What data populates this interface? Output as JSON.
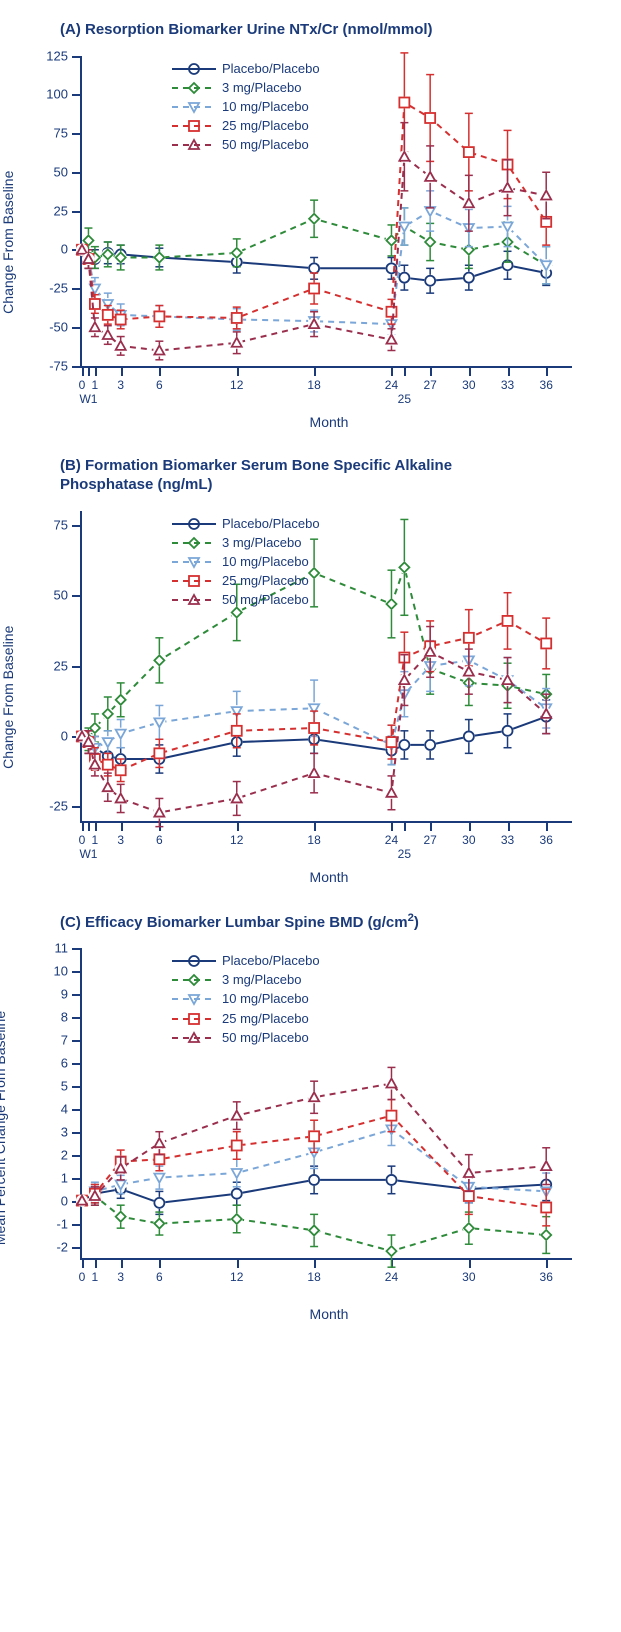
{
  "colors": {
    "placebo": "#1a3a7a",
    "d3": "#2e8b3a",
    "d10": "#7aa6d8",
    "d25": "#d62f2f",
    "d50": "#9a2e4d"
  },
  "markers": {
    "placebo": "circle",
    "d3": "diamond",
    "d10": "tridown",
    "d25": "square",
    "d50": "triup"
  },
  "dash": {
    "placebo": "",
    "d3": "6,5",
    "d10": "6,5",
    "d25": "6,5",
    "d50": "6,5"
  },
  "legend_labels": {
    "placebo": "Placebo/Placebo",
    "d3": "3 mg/Placebo",
    "d10": "10 mg/Placebo",
    "d25": "25 mg/Placebo",
    "d50": "50 mg/Placebo"
  },
  "xaxis": {
    "label": "Month",
    "ticks_AB": [
      {
        "v": 0,
        "l": "0"
      },
      {
        "v": 0.5,
        "l": "W1"
      },
      {
        "v": 1,
        "l": "1"
      },
      {
        "v": 3,
        "l": "3"
      },
      {
        "v": 6,
        "l": "6"
      },
      {
        "v": 12,
        "l": "12"
      },
      {
        "v": 18,
        "l": "18"
      },
      {
        "v": 24,
        "l": "24"
      },
      {
        "v": 25,
        "l": "25"
      },
      {
        "v": 27,
        "l": "27"
      },
      {
        "v": 30,
        "l": "30"
      },
      {
        "v": 33,
        "l": "33"
      },
      {
        "v": 36,
        "l": "36"
      }
    ],
    "ticks_C": [
      {
        "v": 0,
        "l": "0"
      },
      {
        "v": 1,
        "l": "1"
      },
      {
        "v": 3,
        "l": "3"
      },
      {
        "v": 6,
        "l": "6"
      },
      {
        "v": 12,
        "l": "12"
      },
      {
        "v": 18,
        "l": "18"
      },
      {
        "v": 24,
        "l": "24"
      },
      {
        "v": 30,
        "l": "30"
      },
      {
        "v": 36,
        "l": "36"
      }
    ],
    "range": [
      0,
      38
    ]
  },
  "panels": [
    {
      "id": "A",
      "title": "(A) Resorption Biomarker Urine NTx/Cr (nmol/mmol)",
      "ylabel": "Geometric Mean Percent\nChange From Baseline",
      "yrange": [
        -75,
        125
      ],
      "yticks": [
        -75,
        -50,
        -25,
        0,
        25,
        50,
        75,
        100,
        125
      ],
      "xticks": "ticks_AB",
      "series": {
        "placebo": [
          {
            "x": 0,
            "y": 0,
            "e": 0
          },
          {
            "x": 0.5,
            "y": -6,
            "e": 6
          },
          {
            "x": 1,
            "y": -6,
            "e": 6
          },
          {
            "x": 2,
            "y": -2,
            "e": 7
          },
          {
            "x": 3,
            "y": -3,
            "e": 6
          },
          {
            "x": 6,
            "y": -5,
            "e": 6
          },
          {
            "x": 12,
            "y": -8,
            "e": 7
          },
          {
            "x": 18,
            "y": -12,
            "e": 7
          },
          {
            "x": 24,
            "y": -12,
            "e": 7
          },
          {
            "x": 25,
            "y": -18,
            "e": 8
          },
          {
            "x": 27,
            "y": -20,
            "e": 8
          },
          {
            "x": 30,
            "y": -18,
            "e": 8
          },
          {
            "x": 33,
            "y": -10,
            "e": 9
          },
          {
            "x": 36,
            "y": -15,
            "e": 8
          }
        ],
        "d3": [
          {
            "x": 0,
            "y": 0,
            "e": 0
          },
          {
            "x": 0.5,
            "y": 6,
            "e": 8
          },
          {
            "x": 1,
            "y": -5,
            "e": 7
          },
          {
            "x": 2,
            "y": -3,
            "e": 8
          },
          {
            "x": 3,
            "y": -5,
            "e": 8
          },
          {
            "x": 6,
            "y": -5,
            "e": 8
          },
          {
            "x": 12,
            "y": -2,
            "e": 9
          },
          {
            "x": 18,
            "y": 20,
            "e": 12
          },
          {
            "x": 24,
            "y": 6,
            "e": 10
          },
          {
            "x": 25,
            "y": 15,
            "e": 12
          },
          {
            "x": 27,
            "y": 5,
            "e": 12
          },
          {
            "x": 30,
            "y": 0,
            "e": 12
          },
          {
            "x": 33,
            "y": 5,
            "e": 13
          },
          {
            "x": 36,
            "y": -10,
            "e": 12
          }
        ],
        "d10": [
          {
            "x": 0,
            "y": 0,
            "e": 0
          },
          {
            "x": 0.5,
            "y": -6,
            "e": 6
          },
          {
            "x": 1,
            "y": -25,
            "e": 7
          },
          {
            "x": 2,
            "y": -35,
            "e": 7
          },
          {
            "x": 3,
            "y": -42,
            "e": 7
          },
          {
            "x": 6,
            "y": -43,
            "e": 7
          },
          {
            "x": 12,
            "y": -45,
            "e": 7
          },
          {
            "x": 18,
            "y": -46,
            "e": 7
          },
          {
            "x": 24,
            "y": -48,
            "e": 7
          },
          {
            "x": 25,
            "y": 15,
            "e": 12
          },
          {
            "x": 27,
            "y": 25,
            "e": 13
          },
          {
            "x": 30,
            "y": 14,
            "e": 12
          },
          {
            "x": 33,
            "y": 15,
            "e": 13
          },
          {
            "x": 36,
            "y": -10,
            "e": 12
          }
        ],
        "d25": [
          {
            "x": 0,
            "y": 0,
            "e": 0
          },
          {
            "x": 0.5,
            "y": -6,
            "e": 6
          },
          {
            "x": 1,
            "y": -35,
            "e": 6
          },
          {
            "x": 2,
            "y": -42,
            "e": 6
          },
          {
            "x": 3,
            "y": -45,
            "e": 6
          },
          {
            "x": 6,
            "y": -43,
            "e": 7
          },
          {
            "x": 12,
            "y": -44,
            "e": 7
          },
          {
            "x": 18,
            "y": -25,
            "e": 10
          },
          {
            "x": 24,
            "y": -40,
            "e": 8
          },
          {
            "x": 25,
            "y": 95,
            "e": 32
          },
          {
            "x": 27,
            "y": 85,
            "e": 28
          },
          {
            "x": 30,
            "y": 63,
            "e": 25
          },
          {
            "x": 33,
            "y": 55,
            "e": 22
          },
          {
            "x": 36,
            "y": 18,
            "e": 15
          }
        ],
        "d50": [
          {
            "x": 0,
            "y": 0,
            "e": 0
          },
          {
            "x": 0.5,
            "y": -6,
            "e": 6
          },
          {
            "x": 1,
            "y": -50,
            "e": 6
          },
          {
            "x": 2,
            "y": -55,
            "e": 6
          },
          {
            "x": 3,
            "y": -62,
            "e": 6
          },
          {
            "x": 6,
            "y": -65,
            "e": 6
          },
          {
            "x": 12,
            "y": -60,
            "e": 7
          },
          {
            "x": 18,
            "y": -48,
            "e": 8
          },
          {
            "x": 24,
            "y": -58,
            "e": 7
          },
          {
            "x": 25,
            "y": 60,
            "e": 22
          },
          {
            "x": 27,
            "y": 47,
            "e": 20
          },
          {
            "x": 30,
            "y": 30,
            "e": 18
          },
          {
            "x": 33,
            "y": 40,
            "e": 18
          },
          {
            "x": 36,
            "y": 35,
            "e": 15
          }
        ]
      }
    },
    {
      "id": "B",
      "title": "(B) Formation Biomarker Serum Bone Specific Alkaline\n           Phosphatase (ng/mL)",
      "ylabel": "Geometric Mean Percent\nChange From Baseline",
      "yrange": [
        -30,
        80
      ],
      "yticks": [
        -25,
        0,
        25,
        50,
        75
      ],
      "xticks": "ticks_AB",
      "series": {
        "placebo": [
          {
            "x": 0,
            "y": 0,
            "e": 0
          },
          {
            "x": 0.5,
            "y": -2,
            "e": 4
          },
          {
            "x": 1,
            "y": -4,
            "e": 4
          },
          {
            "x": 2,
            "y": -7,
            "e": 4
          },
          {
            "x": 3,
            "y": -8,
            "e": 4
          },
          {
            "x": 6,
            "y": -8,
            "e": 5
          },
          {
            "x": 12,
            "y": -2,
            "e": 5
          },
          {
            "x": 18,
            "y": -1,
            "e": 5
          },
          {
            "x": 24,
            "y": -5,
            "e": 5
          },
          {
            "x": 25,
            "y": -3,
            "e": 5
          },
          {
            "x": 27,
            "y": -3,
            "e": 5
          },
          {
            "x": 30,
            "y": 0,
            "e": 6
          },
          {
            "x": 33,
            "y": 2,
            "e": 6
          },
          {
            "x": 36,
            "y": 7,
            "e": 6
          }
        ],
        "d3": [
          {
            "x": 0,
            "y": 0,
            "e": 0
          },
          {
            "x": 0.5,
            "y": -1,
            "e": 4
          },
          {
            "x": 1,
            "y": 3,
            "e": 5
          },
          {
            "x": 2,
            "y": 8,
            "e": 6
          },
          {
            "x": 3,
            "y": 13,
            "e": 6
          },
          {
            "x": 6,
            "y": 27,
            "e": 8
          },
          {
            "x": 12,
            "y": 44,
            "e": 10
          },
          {
            "x": 18,
            "y": 58,
            "e": 12
          },
          {
            "x": 24,
            "y": 47,
            "e": 12
          },
          {
            "x": 25,
            "y": 60,
            "e": 17
          },
          {
            "x": 27,
            "y": 24,
            "e": 9
          },
          {
            "x": 30,
            "y": 19,
            "e": 8
          },
          {
            "x": 33,
            "y": 18,
            "e": 8
          },
          {
            "x": 36,
            "y": 15,
            "e": 7
          }
        ],
        "d10": [
          {
            "x": 0,
            "y": 0,
            "e": 0
          },
          {
            "x": 0.5,
            "y": -2,
            "e": 4
          },
          {
            "x": 1,
            "y": -4,
            "e": 4
          },
          {
            "x": 2,
            "y": -2,
            "e": 4
          },
          {
            "x": 3,
            "y": 1,
            "e": 5
          },
          {
            "x": 6,
            "y": 5,
            "e": 6
          },
          {
            "x": 12,
            "y": 9,
            "e": 7
          },
          {
            "x": 18,
            "y": 10,
            "e": 10
          },
          {
            "x": 24,
            "y": -3,
            "e": 7
          },
          {
            "x": 25,
            "y": 15,
            "e": 8
          },
          {
            "x": 27,
            "y": 25,
            "e": 9
          },
          {
            "x": 30,
            "y": 27,
            "e": 9
          },
          {
            "x": 33,
            "y": 20,
            "e": 8
          },
          {
            "x": 36,
            "y": 10,
            "e": 7
          }
        ],
        "d25": [
          {
            "x": 0,
            "y": 0,
            "e": 0
          },
          {
            "x": 0.5,
            "y": -2,
            "e": 4
          },
          {
            "x": 1,
            "y": -8,
            "e": 4
          },
          {
            "x": 2,
            "y": -10,
            "e": 4
          },
          {
            "x": 3,
            "y": -12,
            "e": 4
          },
          {
            "x": 6,
            "y": -6,
            "e": 5
          },
          {
            "x": 12,
            "y": 2,
            "e": 6
          },
          {
            "x": 18,
            "y": 3,
            "e": 6
          },
          {
            "x": 24,
            "y": -2,
            "e": 6
          },
          {
            "x": 25,
            "y": 28,
            "e": 9
          },
          {
            "x": 27,
            "y": 32,
            "e": 9
          },
          {
            "x": 30,
            "y": 35,
            "e": 10
          },
          {
            "x": 33,
            "y": 41,
            "e": 10
          },
          {
            "x": 36,
            "y": 33,
            "e": 9
          }
        ],
        "d50": [
          {
            "x": 0,
            "y": 0,
            "e": 0
          },
          {
            "x": 0.5,
            "y": -2,
            "e": 4
          },
          {
            "x": 1,
            "y": -10,
            "e": 4
          },
          {
            "x": 2,
            "y": -18,
            "e": 5
          },
          {
            "x": 3,
            "y": -22,
            "e": 5
          },
          {
            "x": 6,
            "y": -27,
            "e": 5
          },
          {
            "x": 12,
            "y": -22,
            "e": 6
          },
          {
            "x": 18,
            "y": -13,
            "e": 7
          },
          {
            "x": 24,
            "y": -20,
            "e": 6
          },
          {
            "x": 25,
            "y": 20,
            "e": 9
          },
          {
            "x": 27,
            "y": 30,
            "e": 9
          },
          {
            "x": 30,
            "y": 23,
            "e": 8
          },
          {
            "x": 33,
            "y": 20,
            "e": 8
          },
          {
            "x": 36,
            "y": 8,
            "e": 7
          }
        ]
      }
    },
    {
      "id": "C",
      "title": "(C) Efficacy Biomarker Lumbar Spine BMD (g/cm²)",
      "ylabel": "Mean Percent Change From Baseline",
      "yrange": [
        -2.5,
        11
      ],
      "yticks": [
        -2,
        -1,
        0,
        1,
        2,
        3,
        4,
        5,
        6,
        7,
        8,
        9,
        10,
        11
      ],
      "xticks": "ticks_C",
      "series": {
        "placebo": [
          {
            "x": 0,
            "y": 0,
            "e": 0
          },
          {
            "x": 1,
            "y": 0.3,
            "e": 0.4
          },
          {
            "x": 3,
            "y": 0.5,
            "e": 0.4
          },
          {
            "x": 6,
            "y": -0.1,
            "e": 0.5
          },
          {
            "x": 12,
            "y": 0.3,
            "e": 0.5
          },
          {
            "x": 18,
            "y": 0.9,
            "e": 0.6
          },
          {
            "x": 24,
            "y": 0.9,
            "e": 0.6
          },
          {
            "x": 30,
            "y": 0.5,
            "e": 0.6
          },
          {
            "x": 36,
            "y": 0.7,
            "e": 0.7
          }
        ],
        "d3": [
          {
            "x": 0,
            "y": 0,
            "e": 0
          },
          {
            "x": 1,
            "y": 0.2,
            "e": 0.4
          },
          {
            "x": 3,
            "y": -0.7,
            "e": 0.5
          },
          {
            "x": 6,
            "y": -1.0,
            "e": 0.5
          },
          {
            "x": 12,
            "y": -0.8,
            "e": 0.6
          },
          {
            "x": 18,
            "y": -1.3,
            "e": 0.7
          },
          {
            "x": 24,
            "y": -2.2,
            "e": 0.7
          },
          {
            "x": 30,
            "y": -1.2,
            "e": 0.7
          },
          {
            "x": 36,
            "y": -1.5,
            "e": 0.8
          }
        ],
        "d10": [
          {
            "x": 0,
            "y": 0,
            "e": 0
          },
          {
            "x": 1,
            "y": 0.4,
            "e": 0.4
          },
          {
            "x": 3,
            "y": 0.7,
            "e": 0.4
          },
          {
            "x": 6,
            "y": 1.0,
            "e": 0.5
          },
          {
            "x": 12,
            "y": 1.2,
            "e": 0.6
          },
          {
            "x": 18,
            "y": 2.1,
            "e": 0.7
          },
          {
            "x": 24,
            "y": 3.1,
            "e": 0.7
          },
          {
            "x": 30,
            "y": 0.6,
            "e": 0.7
          },
          {
            "x": 36,
            "y": 0.4,
            "e": 0.8
          }
        ],
        "d25": [
          {
            "x": 0,
            "y": 0,
            "e": 0
          },
          {
            "x": 1,
            "y": 0.3,
            "e": 0.4
          },
          {
            "x": 3,
            "y": 1.7,
            "e": 0.5
          },
          {
            "x": 6,
            "y": 1.8,
            "e": 0.5
          },
          {
            "x": 12,
            "y": 2.4,
            "e": 0.6
          },
          {
            "x": 18,
            "y": 2.8,
            "e": 0.7
          },
          {
            "x": 24,
            "y": 3.7,
            "e": 0.7
          },
          {
            "x": 30,
            "y": 0.2,
            "e": 0.8
          },
          {
            "x": 36,
            "y": -0.3,
            "e": 0.8
          }
        ],
        "d50": [
          {
            "x": 0,
            "y": 0,
            "e": 0
          },
          {
            "x": 1,
            "y": 0.2,
            "e": 0.4
          },
          {
            "x": 3,
            "y": 1.4,
            "e": 0.5
          },
          {
            "x": 6,
            "y": 2.5,
            "e": 0.5
          },
          {
            "x": 12,
            "y": 3.7,
            "e": 0.6
          },
          {
            "x": 18,
            "y": 4.5,
            "e": 0.7
          },
          {
            "x": 24,
            "y": 5.1,
            "e": 0.7
          },
          {
            "x": 30,
            "y": 1.2,
            "e": 0.8
          },
          {
            "x": 36,
            "y": 1.5,
            "e": 0.8
          }
        ]
      }
    }
  ]
}
